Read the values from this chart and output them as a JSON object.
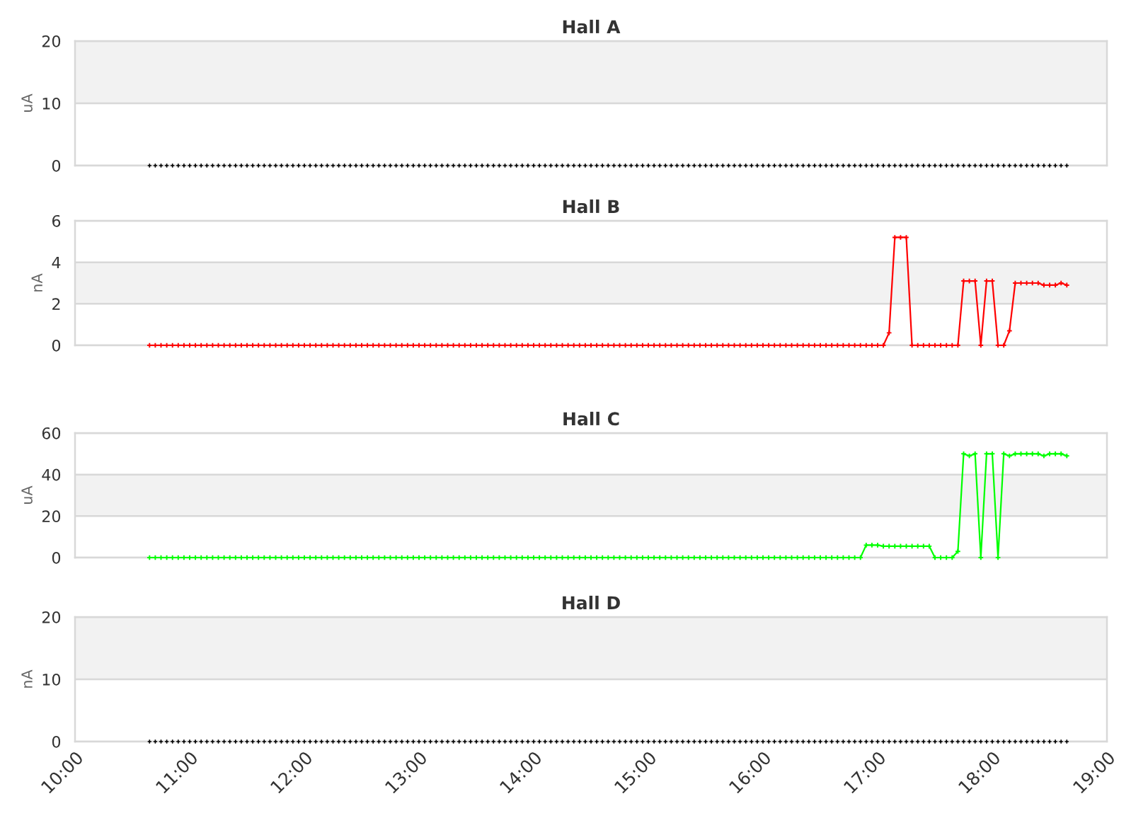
{
  "chart_data": [
    {
      "type": "scatter",
      "title": "Hall A",
      "ylabel": "uA",
      "x": [
        10.65,
        10.7,
        10.75,
        10.8,
        10.85,
        10.9,
        10.95,
        11,
        11.05,
        11.1,
        11.15,
        11.2,
        11.25,
        11.3,
        11.35,
        11.4,
        11.45,
        11.5,
        11.55,
        11.6,
        11.65,
        11.7,
        11.75,
        11.8,
        11.85,
        11.9,
        11.95,
        12,
        12.05,
        12.1,
        12.15,
        12.2,
        12.25,
        12.3,
        12.35,
        12.4,
        12.45,
        12.5,
        12.55,
        12.6,
        12.65,
        12.7,
        12.75,
        12.8,
        12.85,
        12.9,
        12.95,
        13,
        13.05,
        13.1,
        13.15,
        13.2,
        13.25,
        13.3,
        13.35,
        13.4,
        13.45,
        13.5,
        13.55,
        13.6,
        13.65,
        13.7,
        13.75,
        13.8,
        13.85,
        13.9,
        13.95,
        14,
        14.05,
        14.1,
        14.15,
        14.2,
        14.25,
        14.3,
        14.35,
        14.4,
        14.45,
        14.5,
        14.55,
        14.6,
        14.65,
        14.7,
        14.75,
        14.8,
        14.85,
        14.9,
        14.95,
        15,
        15.05,
        15.1,
        15.15,
        15.2,
        15.25,
        15.3,
        15.35,
        15.4,
        15.45,
        15.5,
        15.55,
        15.6,
        15.65,
        15.7,
        15.75,
        15.8,
        15.85,
        15.9,
        15.95,
        16,
        16.05,
        16.1,
        16.15,
        16.2,
        16.25,
        16.3,
        16.35,
        16.4,
        16.45,
        16.5,
        16.55,
        16.6,
        16.65,
        16.7,
        16.75,
        16.8,
        16.85,
        16.9,
        16.95,
        17,
        17.05,
        17.1,
        17.15,
        17.2,
        17.25,
        17.3,
        17.35,
        17.4,
        17.45,
        17.5,
        17.55,
        17.6,
        17.65,
        17.7,
        17.75,
        17.8,
        17.85,
        17.9,
        17.95,
        18,
        18.05,
        18.1,
        18.15,
        18.2,
        18.25,
        18.3,
        18.35,
        18.4,
        18.45,
        18.5,
        18.55,
        18.6,
        18.65
      ],
      "series": [
        {
          "color": "#000000",
          "values": [
            0,
            0,
            0,
            0,
            0,
            0,
            0,
            0,
            0,
            0,
            0,
            0,
            0,
            0,
            0,
            0,
            0,
            0,
            0,
            0,
            0,
            0,
            0,
            0,
            0,
            0,
            0,
            0,
            0,
            0,
            0,
            0,
            0,
            0,
            0,
            0,
            0,
            0,
            0,
            0,
            0,
            0,
            0,
            0,
            0,
            0,
            0,
            0,
            0,
            0,
            0,
            0,
            0,
            0,
            0,
            0,
            0,
            0,
            0,
            0,
            0,
            0,
            0,
            0,
            0,
            0,
            0,
            0,
            0,
            0,
            0,
            0,
            0,
            0,
            0,
            0,
            0,
            0,
            0,
            0,
            0,
            0,
            0,
            0,
            0,
            0,
            0,
            0,
            0,
            0,
            0,
            0,
            0,
            0,
            0,
            0,
            0,
            0,
            0,
            0,
            0,
            0,
            0,
            0,
            0,
            0,
            0,
            0,
            0,
            0,
            0,
            0,
            0,
            0,
            0,
            0,
            0,
            0,
            0,
            0,
            0,
            0,
            0,
            0,
            0,
            0,
            0,
            0,
            0,
            0,
            0,
            0,
            0,
            0,
            0,
            0,
            0,
            0,
            0,
            0,
            0,
            0,
            0,
            0,
            0,
            0,
            0,
            0,
            0,
            0,
            0,
            0,
            0,
            0,
            0,
            0,
            0,
            0,
            0,
            0,
            0
          ]
        }
      ],
      "xlim": [
        10,
        19
      ],
      "ylim": [
        0,
        20
      ],
      "yticks": [
        0,
        10,
        20
      ],
      "bands": [
        {
          "axis": "y",
          "from": 10,
          "to": 20,
          "color": "#f2f2f2"
        }
      ],
      "grid": "y",
      "marker": "cross",
      "tick_labels": "y"
    },
    {
      "type": "line",
      "title": "Hall B",
      "ylabel": "nA",
      "x": [
        10.65,
        10.7,
        10.75,
        10.8,
        10.85,
        10.9,
        10.95,
        11,
        11.05,
        11.1,
        11.15,
        11.2,
        11.25,
        11.3,
        11.35,
        11.4,
        11.45,
        11.5,
        11.55,
        11.6,
        11.65,
        11.7,
        11.75,
        11.8,
        11.85,
        11.9,
        11.95,
        12,
        12.05,
        12.1,
        12.15,
        12.2,
        12.25,
        12.3,
        12.35,
        12.4,
        12.45,
        12.5,
        12.55,
        12.6,
        12.65,
        12.7,
        12.75,
        12.8,
        12.85,
        12.9,
        12.95,
        13,
        13.05,
        13.1,
        13.15,
        13.2,
        13.25,
        13.3,
        13.35,
        13.4,
        13.45,
        13.5,
        13.55,
        13.6,
        13.65,
        13.7,
        13.75,
        13.8,
        13.85,
        13.9,
        13.95,
        14,
        14.05,
        14.1,
        14.15,
        14.2,
        14.25,
        14.3,
        14.35,
        14.4,
        14.45,
        14.5,
        14.55,
        14.6,
        14.65,
        14.7,
        14.75,
        14.8,
        14.85,
        14.9,
        14.95,
        15,
        15.05,
        15.1,
        15.15,
        15.2,
        15.25,
        15.3,
        15.35,
        15.4,
        15.45,
        15.5,
        15.55,
        15.6,
        15.65,
        15.7,
        15.75,
        15.8,
        15.85,
        15.9,
        15.95,
        16,
        16.05,
        16.1,
        16.15,
        16.2,
        16.25,
        16.3,
        16.35,
        16.4,
        16.45,
        16.5,
        16.55,
        16.6,
        16.65,
        16.7,
        16.75,
        16.8,
        16.85,
        16.9,
        16.95,
        17,
        17.05,
        17.1,
        17.15,
        17.2,
        17.25,
        17.3,
        17.35,
        17.4,
        17.45,
        17.5,
        17.55,
        17.6,
        17.65,
        17.7,
        17.75,
        17.8,
        17.85,
        17.9,
        17.95,
        18,
        18.05,
        18.1,
        18.15,
        18.2,
        18.25,
        18.3,
        18.35,
        18.4,
        18.45,
        18.5,
        18.55,
        18.6,
        18.65
      ],
      "series": [
        {
          "color": "#ff0000",
          "values": [
            0,
            0,
            0,
            0,
            0,
            0,
            0,
            0,
            0,
            0,
            0,
            0,
            0,
            0,
            0,
            0,
            0,
            0,
            0,
            0,
            0,
            0,
            0,
            0,
            0,
            0,
            0,
            0,
            0,
            0,
            0,
            0,
            0,
            0,
            0,
            0,
            0,
            0,
            0,
            0,
            0,
            0,
            0,
            0,
            0,
            0,
            0,
            0,
            0,
            0,
            0,
            0,
            0,
            0,
            0,
            0,
            0,
            0,
            0,
            0,
            0,
            0,
            0,
            0,
            0,
            0,
            0,
            0,
            0,
            0,
            0,
            0,
            0,
            0,
            0,
            0,
            0,
            0,
            0,
            0,
            0,
            0,
            0,
            0,
            0,
            0,
            0,
            0,
            0,
            0,
            0,
            0,
            0,
            0,
            0,
            0,
            0,
            0,
            0,
            0,
            0,
            0,
            0,
            0,
            0,
            0,
            0,
            0,
            0,
            0,
            0,
            0,
            0,
            0,
            0,
            0,
            0,
            0,
            0,
            0,
            0,
            0,
            0,
            0,
            0,
            0,
            0,
            0,
            0,
            0.6,
            5.2,
            5.2,
            5.2,
            0,
            0,
            0,
            0,
            0,
            0,
            0,
            0,
            0,
            3.1,
            3.1,
            3.1,
            0,
            3.1,
            3.1,
            0,
            0,
            0.7,
            3.0,
            3.0,
            3.0,
            3.0,
            3.0,
            2.9,
            2.9,
            2.9,
            3.0,
            2.9
          ]
        }
      ],
      "xlim": [
        10,
        19
      ],
      "ylim": [
        0,
        6
      ],
      "yticks": [
        0,
        2,
        4,
        6
      ],
      "bands": [
        {
          "axis": "y",
          "from": 2,
          "to": 4,
          "color": "#f2f2f2"
        }
      ],
      "grid": "y",
      "marker": "cross",
      "line_style": "solid",
      "tick_labels": "y"
    },
    {
      "type": "line",
      "title": "Hall C",
      "ylabel": "uA",
      "x": [
        10.65,
        10.7,
        10.75,
        10.8,
        10.85,
        10.9,
        10.95,
        11,
        11.05,
        11.1,
        11.15,
        11.2,
        11.25,
        11.3,
        11.35,
        11.4,
        11.45,
        11.5,
        11.55,
        11.6,
        11.65,
        11.7,
        11.75,
        11.8,
        11.85,
        11.9,
        11.95,
        12,
        12.05,
        12.1,
        12.15,
        12.2,
        12.25,
        12.3,
        12.35,
        12.4,
        12.45,
        12.5,
        12.55,
        12.6,
        12.65,
        12.7,
        12.75,
        12.8,
        12.85,
        12.9,
        12.95,
        13,
        13.05,
        13.1,
        13.15,
        13.2,
        13.25,
        13.3,
        13.35,
        13.4,
        13.45,
        13.5,
        13.55,
        13.6,
        13.65,
        13.7,
        13.75,
        13.8,
        13.85,
        13.9,
        13.95,
        14,
        14.05,
        14.1,
        14.15,
        14.2,
        14.25,
        14.3,
        14.35,
        14.4,
        14.45,
        14.5,
        14.55,
        14.6,
        14.65,
        14.7,
        14.75,
        14.8,
        14.85,
        14.9,
        14.95,
        15,
        15.05,
        15.1,
        15.15,
        15.2,
        15.25,
        15.3,
        15.35,
        15.4,
        15.45,
        15.5,
        15.55,
        15.6,
        15.65,
        15.7,
        15.75,
        15.8,
        15.85,
        15.9,
        15.95,
        16,
        16.05,
        16.1,
        16.15,
        16.2,
        16.25,
        16.3,
        16.35,
        16.4,
        16.45,
        16.5,
        16.55,
        16.6,
        16.65,
        16.7,
        16.75,
        16.8,
        16.85,
        16.9,
        16.95,
        17,
        17.05,
        17.1,
        17.15,
        17.2,
        17.25,
        17.3,
        17.35,
        17.4,
        17.45,
        17.5,
        17.55,
        17.6,
        17.65,
        17.7,
        17.75,
        17.8,
        17.85,
        17.9,
        17.95,
        18,
        18.05,
        18.1,
        18.15,
        18.2,
        18.25,
        18.3,
        18.35,
        18.4,
        18.45,
        18.5,
        18.55,
        18.6,
        18.65
      ],
      "series": [
        {
          "color": "#00ff00",
          "values": [
            0,
            0,
            0,
            0,
            0,
            0,
            0,
            0,
            0,
            0,
            0,
            0,
            0,
            0,
            0,
            0,
            0,
            0,
            0,
            0,
            0,
            0,
            0,
            0,
            0,
            0,
            0,
            0,
            0,
            0,
            0,
            0,
            0,
            0,
            0,
            0,
            0,
            0,
            0,
            0,
            0,
            0,
            0,
            0,
            0,
            0,
            0,
            0,
            0,
            0,
            0,
            0,
            0,
            0,
            0,
            0,
            0,
            0,
            0,
            0,
            0,
            0,
            0,
            0,
            0,
            0,
            0,
            0,
            0,
            0,
            0,
            0,
            0,
            0,
            0,
            0,
            0,
            0,
            0,
            0,
            0,
            0,
            0,
            0,
            0,
            0,
            0,
            0,
            0,
            0,
            0,
            0,
            0,
            0,
            0,
            0,
            0,
            0,
            0,
            0,
            0,
            0,
            0,
            0,
            0,
            0,
            0,
            0,
            0,
            0,
            0,
            0,
            0,
            0,
            0,
            0,
            0,
            0,
            0,
            0,
            0,
            0,
            0,
            0,
            0,
            6,
            6,
            6,
            5.5,
            5.5,
            5.5,
            5.5,
            5.5,
            5.5,
            5.5,
            5.5,
            5.5,
            0,
            0,
            0,
            0,
            3,
            50,
            49,
            50,
            0,
            50,
            50,
            0,
            50,
            49,
            50,
            50,
            50,
            50,
            50,
            49,
            50,
            50,
            50,
            49
          ]
        }
      ],
      "xlim": [
        10,
        19
      ],
      "ylim": [
        0,
        60
      ],
      "yticks": [
        0,
        20,
        40,
        60
      ],
      "bands": [
        {
          "axis": "y",
          "from": 20,
          "to": 40,
          "color": "#f2f2f2"
        }
      ],
      "grid": "y",
      "marker": "cross",
      "line_style": "solid",
      "tick_labels": "y"
    },
    {
      "type": "scatter",
      "title": "Hall D",
      "ylabel": "nA",
      "x": [
        10.65,
        10.7,
        10.75,
        10.8,
        10.85,
        10.9,
        10.95,
        11,
        11.05,
        11.1,
        11.15,
        11.2,
        11.25,
        11.3,
        11.35,
        11.4,
        11.45,
        11.5,
        11.55,
        11.6,
        11.65,
        11.7,
        11.75,
        11.8,
        11.85,
        11.9,
        11.95,
        12,
        12.05,
        12.1,
        12.15,
        12.2,
        12.25,
        12.3,
        12.35,
        12.4,
        12.45,
        12.5,
        12.55,
        12.6,
        12.65,
        12.7,
        12.75,
        12.8,
        12.85,
        12.9,
        12.95,
        13,
        13.05,
        13.1,
        13.15,
        13.2,
        13.25,
        13.3,
        13.35,
        13.4,
        13.45,
        13.5,
        13.55,
        13.6,
        13.65,
        13.7,
        13.75,
        13.8,
        13.85,
        13.9,
        13.95,
        14,
        14.05,
        14.1,
        14.15,
        14.2,
        14.25,
        14.3,
        14.35,
        14.4,
        14.45,
        14.5,
        14.55,
        14.6,
        14.65,
        14.7,
        14.75,
        14.8,
        14.85,
        14.9,
        14.95,
        15,
        15.05,
        15.1,
        15.15,
        15.2,
        15.25,
        15.3,
        15.35,
        15.4,
        15.45,
        15.5,
        15.55,
        15.6,
        15.65,
        15.7,
        15.75,
        15.8,
        15.85,
        15.9,
        15.95,
        16,
        16.05,
        16.1,
        16.15,
        16.2,
        16.25,
        16.3,
        16.35,
        16.4,
        16.45,
        16.5,
        16.55,
        16.6,
        16.65,
        16.7,
        16.75,
        16.8,
        16.85,
        16.9,
        16.95,
        17,
        17.05,
        17.1,
        17.15,
        17.2,
        17.25,
        17.3,
        17.35,
        17.4,
        17.45,
        17.5,
        17.55,
        17.6,
        17.65,
        17.7,
        17.75,
        17.8,
        17.85,
        17.9,
        17.95,
        18,
        18.05,
        18.1,
        18.15,
        18.2,
        18.25,
        18.3,
        18.35,
        18.4,
        18.45,
        18.5,
        18.55,
        18.6,
        18.65
      ],
      "series": [
        {
          "color": "#000000",
          "values": [
            0,
            0,
            0,
            0,
            0,
            0,
            0,
            0,
            0,
            0,
            0,
            0,
            0,
            0,
            0,
            0,
            0,
            0,
            0,
            0,
            0,
            0,
            0,
            0,
            0,
            0,
            0,
            0,
            0,
            0,
            0,
            0,
            0,
            0,
            0,
            0,
            0,
            0,
            0,
            0,
            0,
            0,
            0,
            0,
            0,
            0,
            0,
            0,
            0,
            0,
            0,
            0,
            0,
            0,
            0,
            0,
            0,
            0,
            0,
            0,
            0,
            0,
            0,
            0,
            0,
            0,
            0,
            0,
            0,
            0,
            0,
            0,
            0,
            0,
            0,
            0,
            0,
            0,
            0,
            0,
            0,
            0,
            0,
            0,
            0,
            0,
            0,
            0,
            0,
            0,
            0,
            0,
            0,
            0,
            0,
            0,
            0,
            0,
            0,
            0,
            0,
            0,
            0,
            0,
            0,
            0,
            0,
            0,
            0,
            0,
            0,
            0,
            0,
            0,
            0,
            0,
            0,
            0,
            0,
            0,
            0,
            0,
            0,
            0,
            0,
            0,
            0,
            0,
            0,
            0,
            0,
            0,
            0,
            0,
            0,
            0,
            0,
            0,
            0,
            0,
            0,
            0,
            0,
            0,
            0,
            0,
            0,
            0,
            0,
            0,
            0,
            0,
            0,
            0,
            0,
            0,
            0,
            0,
            0,
            0,
            0
          ]
        }
      ],
      "xlim": [
        10,
        19
      ],
      "xticks": [
        {
          "value": 10,
          "label": "10:00"
        },
        {
          "value": 11,
          "label": "11:00"
        },
        {
          "value": 12,
          "label": "12:00"
        },
        {
          "value": 13,
          "label": "13:00"
        },
        {
          "value": 14,
          "label": "14:00"
        },
        {
          "value": 15,
          "label": "15:00"
        },
        {
          "value": 16,
          "label": "16:00"
        },
        {
          "value": 17,
          "label": "17:00"
        },
        {
          "value": 18,
          "label": "18:00"
        },
        {
          "value": 19,
          "label": "19:00"
        }
      ],
      "ylim": [
        0,
        20
      ],
      "yticks": [
        0,
        10,
        20
      ],
      "bands": [
        {
          "axis": "y",
          "from": 10,
          "to": 20,
          "color": "#f2f2f2"
        }
      ],
      "grid": "y",
      "marker": "cross"
    }
  ]
}
